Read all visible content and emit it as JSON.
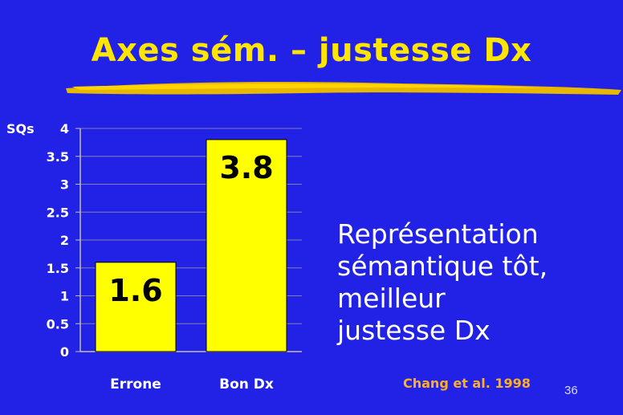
{
  "slide": {
    "title": "Axes sém. – justesse Dx",
    "body_lines": [
      "Représentation",
      "sémantique tôt,",
      "meilleur",
      "justesse Dx"
    ],
    "citation": "Chang et al. 1998",
    "page_number": "36"
  },
  "colors": {
    "background": "#2222e6",
    "title": "#ffe600",
    "bar": "#ffff00",
    "citation": "#ffb020"
  },
  "chart_data": {
    "type": "bar",
    "categories": [
      "Errone",
      "Bon Dx"
    ],
    "values": [
      1.6,
      3.8
    ],
    "data_labels": [
      "1.6",
      "3.8"
    ],
    "ylabel": "SQs",
    "ylim": [
      0,
      4
    ],
    "yticks": [
      "0",
      "0.5",
      "1",
      "1.5",
      "2",
      "2.5",
      "3",
      "3.5",
      "4"
    ],
    "grid": true
  }
}
